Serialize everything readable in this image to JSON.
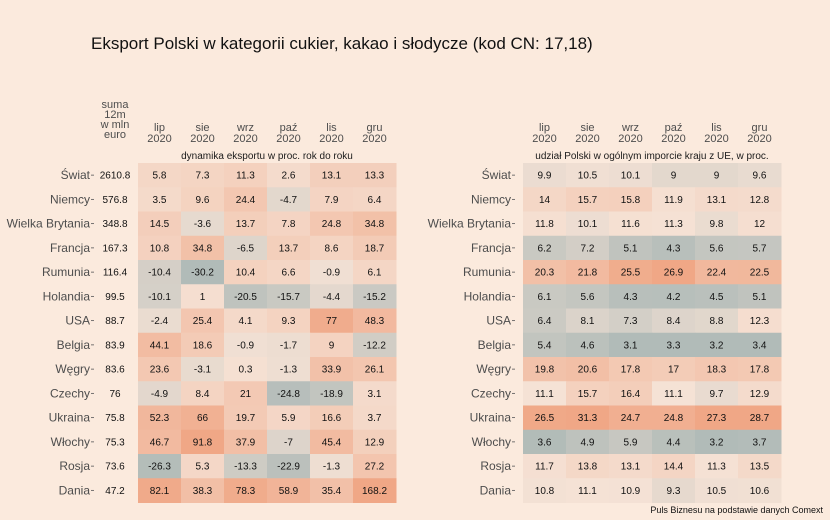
{
  "title": "Eksport Polski w kategorii cukier, kakao i słodycze (kod CN: 17,18)",
  "caption": "Puls Biznesu na podstawie danych Comext",
  "colors": {
    "background": "#fbeadd",
    "positive": "#f0a786",
    "negative": "#b1bbb8",
    "neutral": "#f5e2d5"
  },
  "chart_data": [
    {
      "type": "table",
      "id": "left",
      "sum_header": [
        "suma",
        "12m",
        "w mln",
        "euro"
      ],
      "columns": [
        [
          "lip",
          "2020"
        ],
        [
          "sie",
          "2020"
        ],
        [
          "wrz",
          "2020"
        ],
        [
          "paź",
          "2020"
        ],
        [
          "lis",
          "2020"
        ],
        [
          "gru",
          "2020"
        ]
      ],
      "subtitle": "dynamika eksportu w proc. rok do roku",
      "rows": [
        {
          "country": "Świat",
          "sum": "2610.8",
          "values": [
            "5.8",
            "7.3",
            "11.3",
            "2.6",
            "13.1",
            "13.3"
          ]
        },
        {
          "country": "Niemcy",
          "sum": "576.8",
          "values": [
            "3.5",
            "9.6",
            "24.4",
            "-4.7",
            "7.9",
            "6.4"
          ]
        },
        {
          "country": "Wielka Brytania",
          "sum": "348.8",
          "values": [
            "14.5",
            "-3.6",
            "13.7",
            "7.8",
            "24.8",
            "34.8"
          ]
        },
        {
          "country": "Francja",
          "sum": "167.3",
          "values": [
            "10.8",
            "34.8",
            "-6.5",
            "13.7",
            "8.6",
            "18.7"
          ]
        },
        {
          "country": "Rumunia",
          "sum": "116.4",
          "values": [
            "-10.4",
            "-30.2",
            "10.4",
            "6.6",
            "-0.9",
            "6.1"
          ]
        },
        {
          "country": "Holandia",
          "sum": "99.5",
          "values": [
            "-10.1",
            "1",
            "-20.5",
            "-15.7",
            "-4.4",
            "-15.2"
          ]
        },
        {
          "country": "USA",
          "sum": "88.7",
          "values": [
            "-2.4",
            "25.4",
            "4.1",
            "9.3",
            "77",
            "48.3"
          ]
        },
        {
          "country": "Belgia",
          "sum": "83.9",
          "values": [
            "44.1",
            "18.6",
            "-0.9",
            "-1.7",
            "9",
            "-12.2"
          ]
        },
        {
          "country": "Węgry",
          "sum": "83.6",
          "values": [
            "23.6",
            "-3.1",
            "0.3",
            "-1.3",
            "33.9",
            "26.1"
          ]
        },
        {
          "country": "Czechy",
          "sum": "76",
          "values": [
            "-4.9",
            "8.4",
            "21",
            "-24.8",
            "-18.9",
            "3.1"
          ]
        },
        {
          "country": "Ukraina",
          "sum": "75.8",
          "values": [
            "52.3",
            "66",
            "19.7",
            "5.9",
            "16.6",
            "3.7"
          ]
        },
        {
          "country": "Włochy",
          "sum": "75.3",
          "values": [
            "46.7",
            "91.8",
            "37.9",
            "-7",
            "45.4",
            "12.9"
          ]
        },
        {
          "country": "Rosja",
          "sum": "73.6",
          "values": [
            "-26.3",
            "5.3",
            "-13.3",
            "-22.9",
            "-1.3",
            "27.2"
          ]
        },
        {
          "country": "Dania",
          "sum": "47.2",
          "values": [
            "82.1",
            "38.3",
            "78.3",
            "58.9",
            "35.4",
            "168.2"
          ]
        }
      ]
    },
    {
      "type": "table",
      "id": "right",
      "columns": [
        [
          "lip",
          "2020"
        ],
        [
          "sie",
          "2020"
        ],
        [
          "wrz",
          "2020"
        ],
        [
          "paź",
          "2020"
        ],
        [
          "lis",
          "2020"
        ],
        [
          "gru",
          "2020"
        ]
      ],
      "subtitle": "udział Polski w ogólnym imporcie kraju z UE, w proc.",
      "rows": [
        {
          "country": "Świat",
          "values": [
            "9.9",
            "10.5",
            "10.1",
            "9",
            "9",
            "9.6"
          ]
        },
        {
          "country": "Niemcy",
          "values": [
            "14",
            "15.7",
            "15.8",
            "11.9",
            "13.1",
            "12.8"
          ]
        },
        {
          "country": "Wielka Brytania",
          "values": [
            "11.8",
            "10.1",
            "11.6",
            "11.3",
            "9.8",
            "12"
          ]
        },
        {
          "country": "Francja",
          "values": [
            "6.2",
            "7.2",
            "5.1",
            "4.3",
            "5.6",
            "5.7"
          ]
        },
        {
          "country": "Rumunia",
          "values": [
            "20.3",
            "21.8",
            "25.5",
            "26.9",
            "22.4",
            "22.5"
          ]
        },
        {
          "country": "Holandia",
          "values": [
            "6.1",
            "5.6",
            "4.3",
            "4.2",
            "4.5",
            "5.1"
          ]
        },
        {
          "country": "USA",
          "values": [
            "6.4",
            "8.1",
            "7.3",
            "8.4",
            "8.8",
            "12.3"
          ]
        },
        {
          "country": "Belgia",
          "values": [
            "5.4",
            "4.6",
            "3.1",
            "3.3",
            "3.2",
            "3.4"
          ]
        },
        {
          "country": "Węgry",
          "values": [
            "19.8",
            "20.6",
            "17.8",
            "17",
            "18.3",
            "17.8"
          ]
        },
        {
          "country": "Czechy",
          "values": [
            "11.1",
            "15.7",
            "16.4",
            "11.1",
            "9.7",
            "12.9"
          ]
        },
        {
          "country": "Ukraina",
          "values": [
            "26.5",
            "31.3",
            "24.7",
            "24.8",
            "27.3",
            "28.7"
          ]
        },
        {
          "country": "Włochy",
          "values": [
            "3.6",
            "4.9",
            "5.9",
            "4.4",
            "3.2",
            "3.7"
          ]
        },
        {
          "country": "Rosja",
          "values": [
            "11.7",
            "13.8",
            "13.1",
            "14.4",
            "11.3",
            "13.5"
          ]
        },
        {
          "country": "Dania",
          "values": [
            "10.8",
            "11.1",
            "10.9",
            "9.3",
            "10.5",
            "10.6"
          ]
        }
      ]
    }
  ]
}
